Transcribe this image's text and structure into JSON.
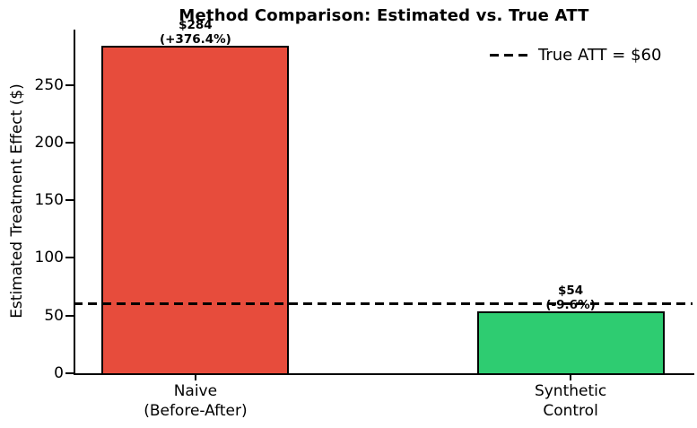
{
  "chart_data": {
    "type": "bar",
    "title": "Method Comparison: Estimated vs. True ATT",
    "ylabel": "Estimated Treatment Effect ($)",
    "xlabel": "",
    "categories": [
      "Naive\n(Before-After)",
      "Synthetic\nControl"
    ],
    "values": [
      284,
      54
    ],
    "bar_colors": [
      "#e74c3c",
      "#2ecc71"
    ],
    "bar_edge_color": "#000000",
    "annotations": [
      [
        "$284",
        "(+376.4%)"
      ],
      [
        "$54",
        "(-9.6%)"
      ]
    ],
    "reference_line": {
      "value": 60,
      "label": "True ATT = $60",
      "style": "dashed",
      "color": "#000000"
    },
    "yticks": [
      0,
      50,
      100,
      150,
      200,
      250
    ],
    "ylim": [
      0,
      298
    ],
    "xlim": [
      -0.325,
      1.325
    ],
    "bar_width": 0.5,
    "legend_position": "upper right",
    "legend_frame": false,
    "grid": false,
    "background_color": "#ffffff"
  }
}
